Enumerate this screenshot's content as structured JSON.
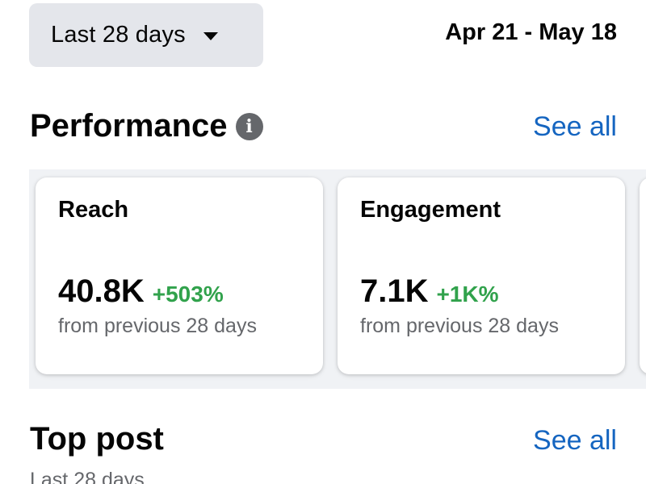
{
  "header": {
    "range_label": "Last 28 days",
    "date_range": "Apr 21 - May 18"
  },
  "performance": {
    "title": "Performance",
    "info_icon": "info-icon",
    "see_all": "See all",
    "cards": [
      {
        "title": "Reach",
        "value": "40.8K",
        "change": "+503%",
        "subtitle": "from previous 28 days"
      },
      {
        "title": "Engagement",
        "value": "7.1K",
        "change": "+1K%",
        "subtitle": "from previous 28 days"
      }
    ]
  },
  "top_post": {
    "title": "Top post",
    "see_all": "See all",
    "subtitle": "Last 28 days"
  },
  "colors": {
    "positive_change": "#31a24c",
    "link": "#1565c0",
    "dropdown_bg": "#e4e6eb",
    "secondary_text": "#65676b"
  }
}
